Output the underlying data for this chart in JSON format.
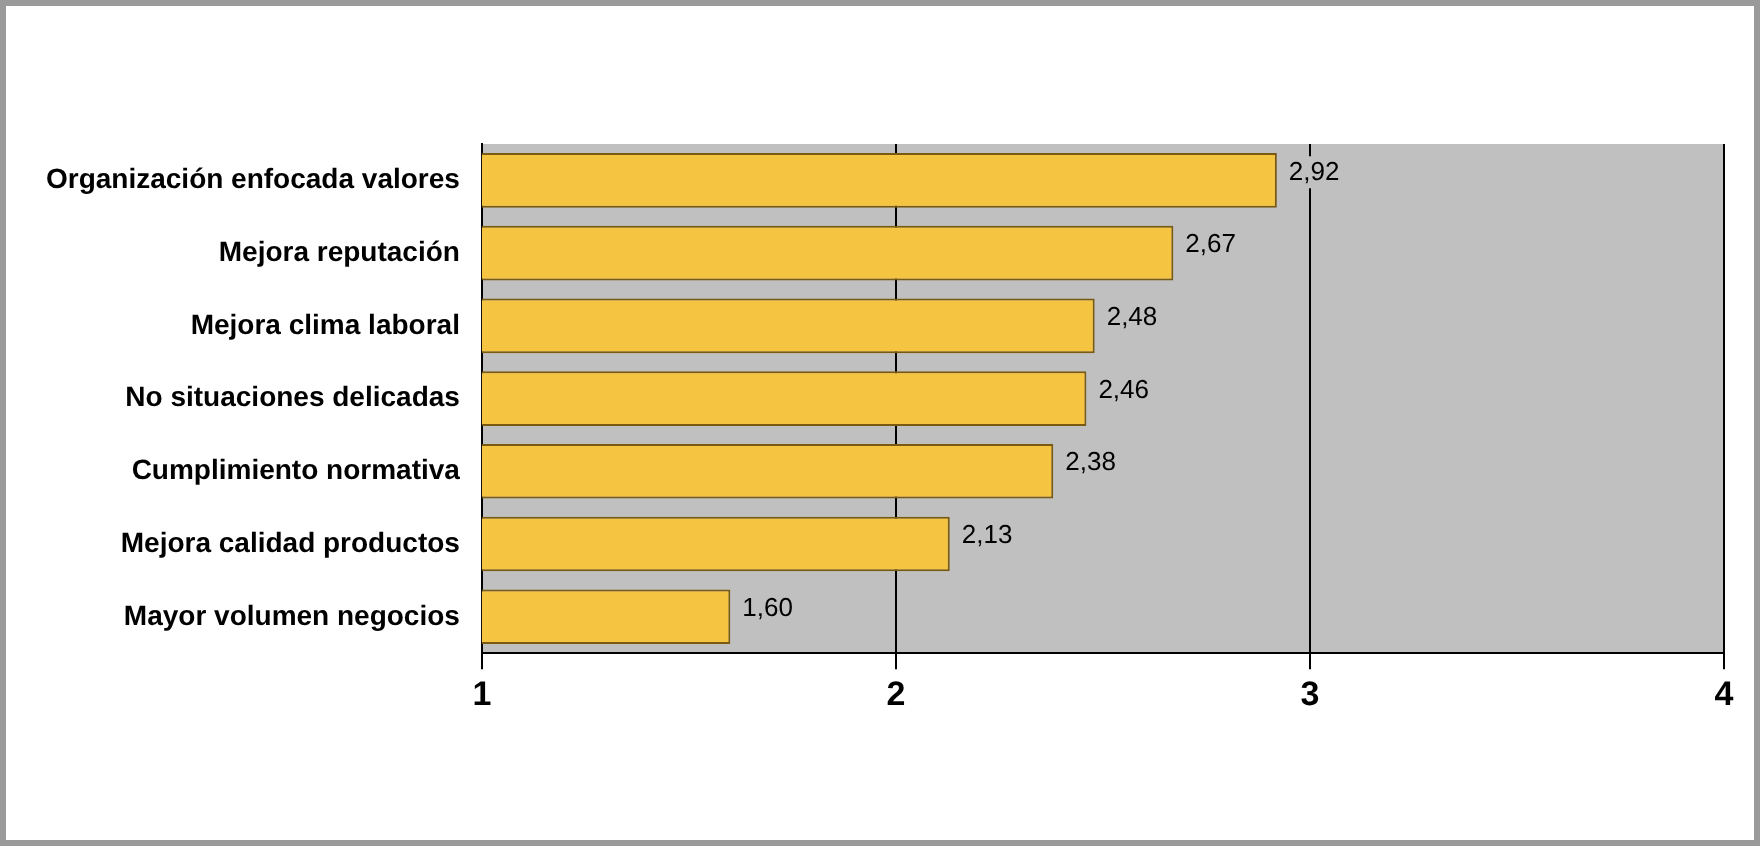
{
  "chart_data": {
    "type": "bar",
    "orientation": "horizontal",
    "categories": [
      "Organización enfocada valores",
      "Mejora reputación",
      "Mejora clima laboral",
      "No situaciones delicadas",
      "Cumplimiento normativa",
      "Mejora calidad productos",
      "Mayor volumen negocios"
    ],
    "values": [
      2.92,
      2.67,
      2.48,
      2.46,
      2.38,
      2.13,
      1.6
    ],
    "value_labels": [
      "2,92",
      "2,67",
      "2,48",
      "2,46",
      "2,38",
      "2,13",
      "1,60"
    ],
    "color": "#f5c542",
    "xlim": [
      1,
      4
    ],
    "xticks": [
      1,
      2,
      3,
      4
    ],
    "grid": "x",
    "legend": false
  }
}
